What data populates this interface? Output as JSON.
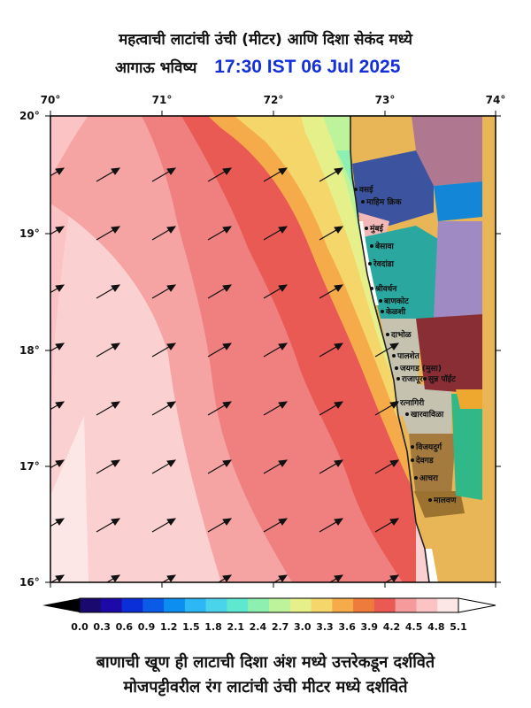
{
  "header": {
    "title_line1": "महत्वाची लाटांची उंची (मीटर) आणि दिशा सेकंद मध्ये",
    "title_line2_prefix": "आगाऊ भविष्य",
    "datetime": "17:30 IST 06 Jul 2025"
  },
  "axes": {
    "lon_labels": [
      "70°",
      "71°",
      "72°",
      "73°",
      "74°"
    ],
    "lat_labels": [
      "20°",
      "19°",
      "18°",
      "17°",
      "16°"
    ]
  },
  "colorbar": {
    "ticks": [
      "0.0",
      "0.3",
      "0.6",
      "0.9",
      "1.2",
      "1.5",
      "1.8",
      "2.1",
      "2.4",
      "2.7",
      "3.0",
      "3.3",
      "3.6",
      "3.9",
      "4.2",
      "4.5",
      "4.8",
      "5.1"
    ],
    "colors": [
      "#1a0a70",
      "#1d08a8",
      "#0a2fd8",
      "#0a5ce6",
      "#0b8ef0",
      "#2db8f5",
      "#4ad4ec",
      "#5ee8d0",
      "#8ef0b0",
      "#bdf39a",
      "#e6f08a",
      "#f5d66b",
      "#f6ab4a",
      "#ee7a3c",
      "#ea5a55",
      "#f59b9b",
      "#fbc3c3",
      "#fde6e6"
    ]
  },
  "places": [
    "वसई",
    "माहिम क्रिक",
    "मुंबई",
    "बेसावा",
    "रेवदांडा",
    "श्रीवर्धन",
    "बाणकोट",
    "केळशी",
    "दाभोळ",
    "पालशेत",
    "जयगड (मुसा)",
    "राजापूर",
    "सुन्न पॉईंट",
    "रत्नागिरी",
    "खारवाविळा",
    "विजयदुर्ग",
    "देवगड",
    "आचरा",
    "मालवण"
  ],
  "footer": {
    "line1": "बाणाची खूण ही लाटाची दिशा अंश मध्ये उत्तरेकडून दर्शविते",
    "line2": "मोजपट्टीवरील रंग लाटांची उंची मीटर मध्ये दर्शविते"
  }
}
